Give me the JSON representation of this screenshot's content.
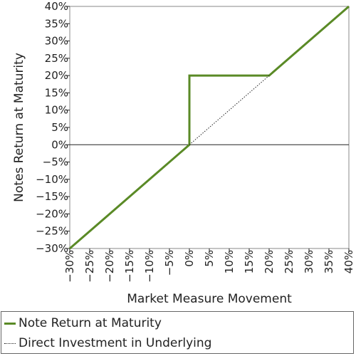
{
  "chart_data": {
    "type": "line",
    "xlabel": "Market Measure Movement",
    "ylabel": "Notes Return at Maturity",
    "xlim": [
      -30,
      40
    ],
    "ylim": [
      -30,
      40
    ],
    "x_ticks": [
      "-30%",
      "-25%",
      "-20%",
      "-15%",
      "-10%",
      "-5%",
      "0%",
      "5%",
      "10%",
      "15%",
      "20%",
      "25%",
      "30%",
      "35%",
      "40%"
    ],
    "y_ticks": [
      "40%",
      "35%",
      "30%",
      "25%",
      "20%",
      "15%",
      "10%",
      "5%",
      "0%",
      "-5%",
      "-10%",
      "-15%",
      "-20%",
      "-25%",
      "-30%"
    ],
    "grid": false,
    "legend_position": "bottom",
    "series": [
      {
        "name": "Note Return at Maturity",
        "color": "#5a8a26",
        "style": "solid",
        "points": [
          [
            -30,
            -30
          ],
          [
            0,
            0
          ],
          [
            0,
            20
          ],
          [
            20,
            20
          ],
          [
            40,
            40
          ]
        ]
      },
      {
        "name": "Direct Investment in Underlying",
        "color": "#222222",
        "style": "dotted",
        "points": [
          [
            0,
            0
          ],
          [
            20,
            20
          ]
        ]
      }
    ]
  }
}
